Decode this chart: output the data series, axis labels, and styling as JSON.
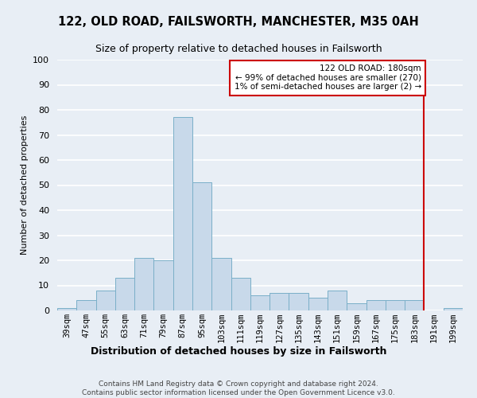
{
  "title": "122, OLD ROAD, FAILSWORTH, MANCHESTER, M35 0AH",
  "subtitle": "Size of property relative to detached houses in Failsworth",
  "xlabel": "Distribution of detached houses by size in Failsworth",
  "ylabel": "Number of detached properties",
  "footer_line1": "Contains HM Land Registry data © Crown copyright and database right 2024.",
  "footer_line2": "Contains public sector information licensed under the Open Government Licence v3.0.",
  "bar_labels": [
    "39sqm",
    "47sqm",
    "55sqm",
    "63sqm",
    "71sqm",
    "79sqm",
    "87sqm",
    "95sqm",
    "103sqm",
    "111sqm",
    "119sqm",
    "127sqm",
    "135sqm",
    "143sqm",
    "151sqm",
    "159sqm",
    "167sqm",
    "175sqm",
    "183sqm",
    "191sqm",
    "199sqm"
  ],
  "bar_values": [
    1,
    4,
    8,
    13,
    21,
    20,
    77,
    51,
    21,
    13,
    6,
    7,
    7,
    5,
    8,
    3,
    4,
    4,
    4,
    0,
    1
  ],
  "bar_color": "#c8d9ea",
  "bar_edgecolor": "#7aafc8",
  "background_color": "#e8eef5",
  "plot_bg_color": "#e8eef5",
  "grid_color": "#ffffff",
  "ylim": [
    0,
    100
  ],
  "yticks": [
    0,
    10,
    20,
    30,
    40,
    50,
    60,
    70,
    80,
    90,
    100
  ],
  "annotation_line1": "122 OLD ROAD: 180sqm",
  "annotation_line2": "← 99% of detached houses are smaller (270)",
  "annotation_line3": "1% of semi-detached houses are larger (2) →",
  "annotation_box_color": "#ffffff",
  "annotation_box_edgecolor": "#cc0000",
  "vline_color": "#cc0000",
  "vline_x_index": 18,
  "title_fontsize": 10.5,
  "subtitle_fontsize": 9,
  "ylabel_fontsize": 8,
  "xlabel_fontsize": 9,
  "tick_fontsize": 7.5,
  "footer_fontsize": 6.5
}
